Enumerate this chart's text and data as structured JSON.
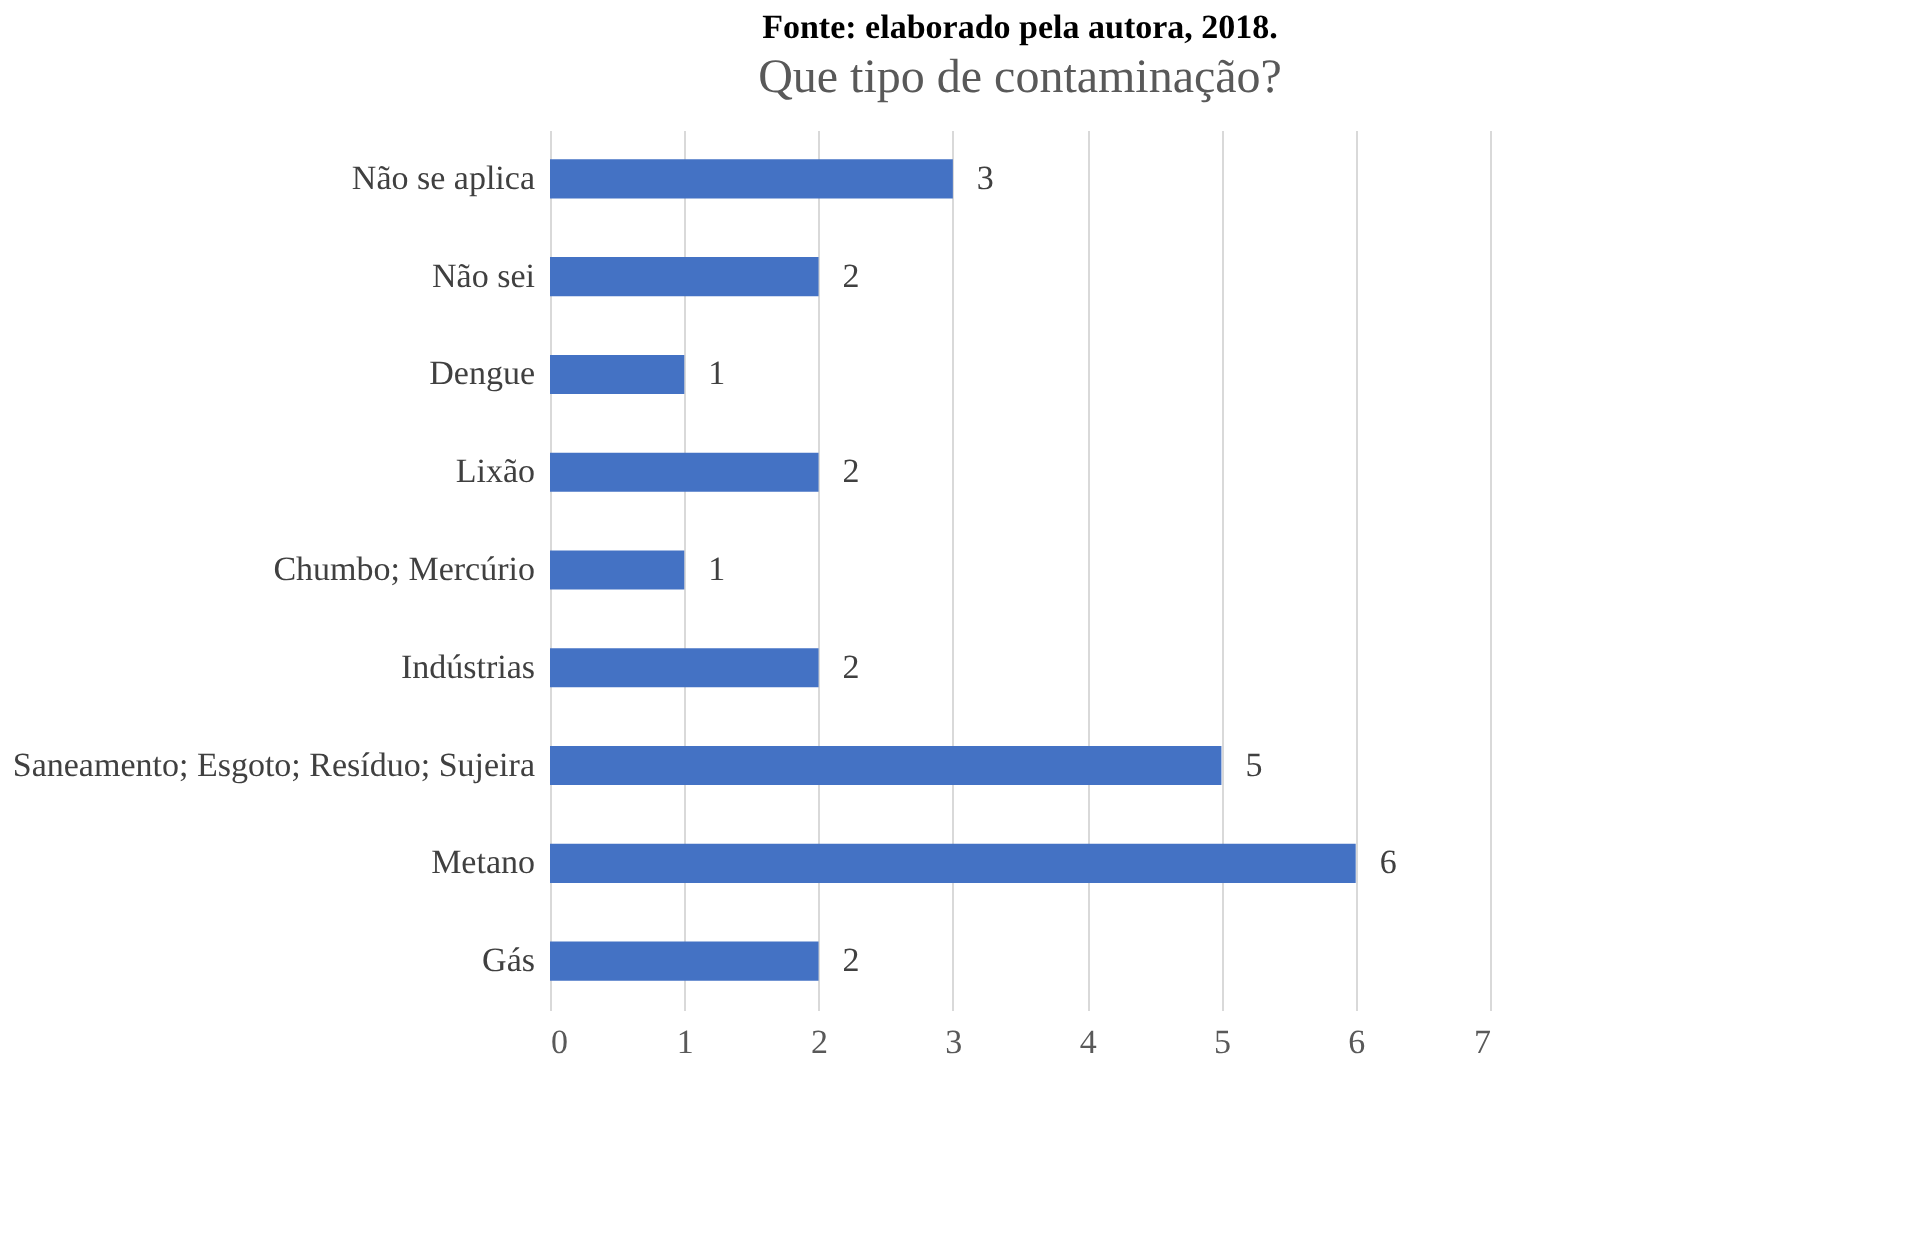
{
  "chart_data": {
    "type": "bar",
    "orientation": "horizontal",
    "title": "Que tipo de contaminação?",
    "annotations": [
      "Fonte: elaborado pela autora, 2018."
    ],
    "categories": [
      "Não se aplica",
      "Não sei",
      "Dengue",
      "Lixão",
      "Chumbo; Mercúrio",
      "Indústrias",
      "Saneamento; Esgoto; Resíduo; Sujeira",
      "Metano",
      "Gás"
    ],
    "values": [
      3,
      2,
      1,
      2,
      1,
      2,
      5,
      6,
      2
    ],
    "color": "#4472c4",
    "xlim": [
      0,
      7
    ],
    "xticks": [
      0,
      1,
      2,
      3,
      4,
      5,
      6,
      7
    ],
    "grid": "x",
    "data_labels": true
  }
}
